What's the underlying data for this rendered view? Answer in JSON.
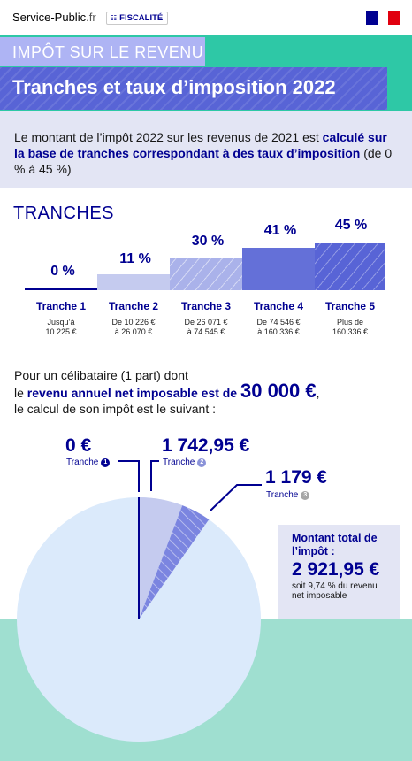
{
  "header": {
    "site_name": "Service-Public",
    "site_suffix": ".fr",
    "category": "FISCALITÉ",
    "category_icon": "building-icon",
    "flag_colors": [
      "#000091",
      "#ffffff",
      "#e1000f"
    ]
  },
  "kicker": "IMPÔT SUR LE REVENU",
  "title": "Tranches et taux d’imposition 2022",
  "intro": {
    "part1": "Le montant de l’impôt 2022 sur les revenus de 2021 est ",
    "bold": "calculé sur la base de tranches correspondant à des taux d’imposition",
    "part2": " (de 0 % à 45 %)"
  },
  "tranches_title": "TRANCHES",
  "tranches": [
    {
      "name": "Tranche 1",
      "rate": "0 %",
      "rate_value": 0,
      "range_l1": "Jusqu’à",
      "range_l2": "10 225 €"
    },
    {
      "name": "Tranche 2",
      "rate": "11 %",
      "rate_value": 11,
      "range_l1": "De 10 226 €",
      "range_l2": "à 26 070 €"
    },
    {
      "name": "Tranche 3",
      "rate": "30 %",
      "rate_value": 30,
      "range_l1": "De 26 071 €",
      "range_l2": "à 74 545 €"
    },
    {
      "name": "Tranche 4",
      "rate": "41 %",
      "rate_value": 41,
      "range_l1": "De 74 546 €",
      "range_l2": "à 160 336 €"
    },
    {
      "name": "Tranche 5",
      "rate": "45 %",
      "rate_value": 45,
      "range_l1": "Plus de",
      "range_l2": "160 336 €"
    }
  ],
  "calc": {
    "line1": "Pour un célibataire (1 part) dont",
    "line2_pre": "le ",
    "line2_bold": "revenu annuel net imposable est de ",
    "line2_amount": "30 000 €",
    "line2_post": ",",
    "line3": "le calcul de son impôt est le suivant :"
  },
  "breakdown": [
    {
      "amount": "0 €",
      "label": "Tranche",
      "num": "1",
      "value": 0
    },
    {
      "amount": "1 742,95 €",
      "label": "Tranche",
      "num": "2",
      "value": 1742.95
    },
    {
      "amount": "1 179 €",
      "label": "Tranche",
      "num": "3",
      "value": 1179
    }
  ],
  "base_income": 30000,
  "total": {
    "label": "Montant total de l’impôt :",
    "amount": "2 921,95 €",
    "note": "soit 9,74 % du revenu net imposable"
  },
  "colors": {
    "navy": "#000091",
    "teal": "#2ec8a6",
    "mint": "#9fdfd0",
    "lavender": "#e3e5f4",
    "pie_light": "#dbeafb",
    "slice2": "#c5cbef",
    "slice3": "#7b85e0"
  }
}
